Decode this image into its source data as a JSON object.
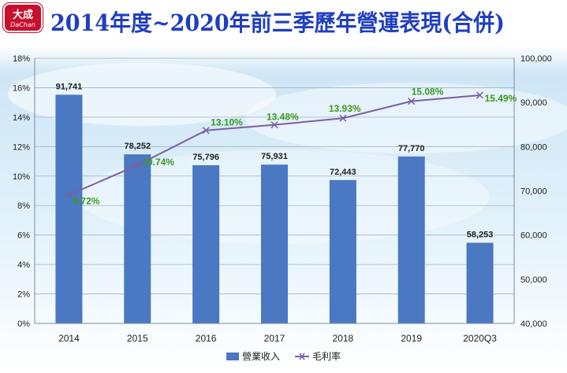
{
  "header": {
    "title": "2014年度~2020年前三季歷年營運表現(合併)",
    "logo_text": "大成"
  },
  "chart_data": {
    "type": "bar",
    "categories": [
      "2014",
      "2015",
      "2016",
      "2017",
      "2018",
      "2019",
      "2020Q3"
    ],
    "series": [
      {
        "name": "營業收入",
        "type": "bar",
        "axis": "right",
        "values": [
          91741,
          78252,
          75796,
          75931,
          72443,
          77770,
          58253
        ],
        "labels": [
          "91,741",
          "78,252",
          "75,796",
          "75,931",
          "72,443",
          "77,770",
          "58,253"
        ],
        "color": "#4a78c2"
      },
      {
        "name": "毛利率",
        "type": "line",
        "axis": "left",
        "values": [
          8.72,
          10.74,
          13.1,
          13.48,
          13.93,
          15.08,
          15.49
        ],
        "labels": [
          "8.72%",
          "10.74%",
          "13.10%",
          "13.48%",
          "13.93%",
          "15.08%",
          "15.49%"
        ],
        "color": "#7b5fa5",
        "label_color": "#3a9a1e"
      }
    ],
    "y_left": {
      "ylim": [
        0,
        18
      ],
      "ticks": [
        "0%",
        "2%",
        "4%",
        "6%",
        "8%",
        "10%",
        "12%",
        "14%",
        "16%",
        "18%"
      ]
    },
    "y_right": {
      "ylim": [
        40000,
        100000
      ],
      "ticks": [
        "40,000",
        "50,000",
        "60,000",
        "70,000",
        "80,000",
        "90,000",
        "100,000"
      ]
    },
    "grid": true,
    "legend": "bottom"
  }
}
